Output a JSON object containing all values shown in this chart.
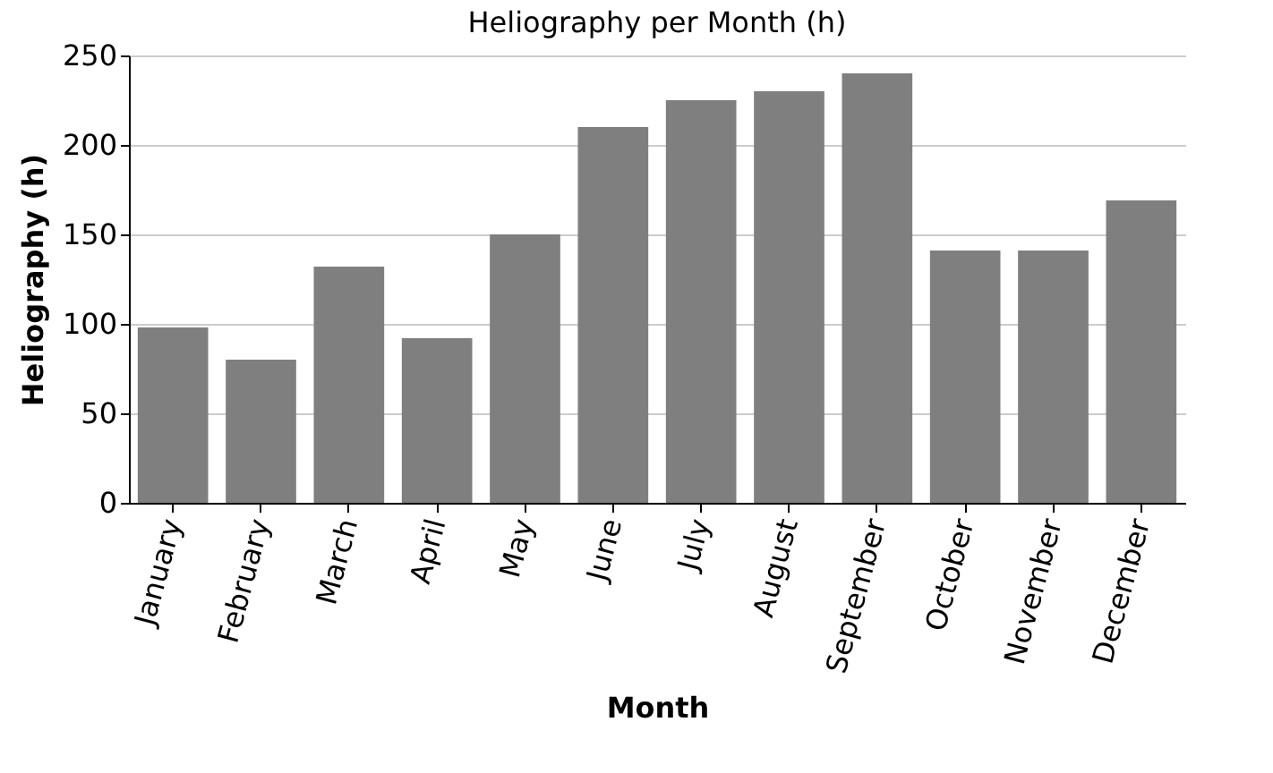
{
  "chart_data": {
    "type": "bar",
    "title": "Heliography per Month (h)",
    "xlabel": "Month",
    "ylabel": "Heliography (h)",
    "categories": [
      "January",
      "February",
      "March",
      "April",
      "May",
      "June",
      "July",
      "August",
      "September",
      "October",
      "November",
      "December"
    ],
    "values": [
      98,
      80,
      132,
      92,
      150,
      210,
      225,
      230,
      240,
      141,
      141,
      169
    ],
    "color": "#7f7f7f",
    "ylim": [
      0,
      250
    ],
    "yticks": [
      0,
      50,
      100,
      150,
      200,
      250
    ],
    "grid": "y"
  }
}
